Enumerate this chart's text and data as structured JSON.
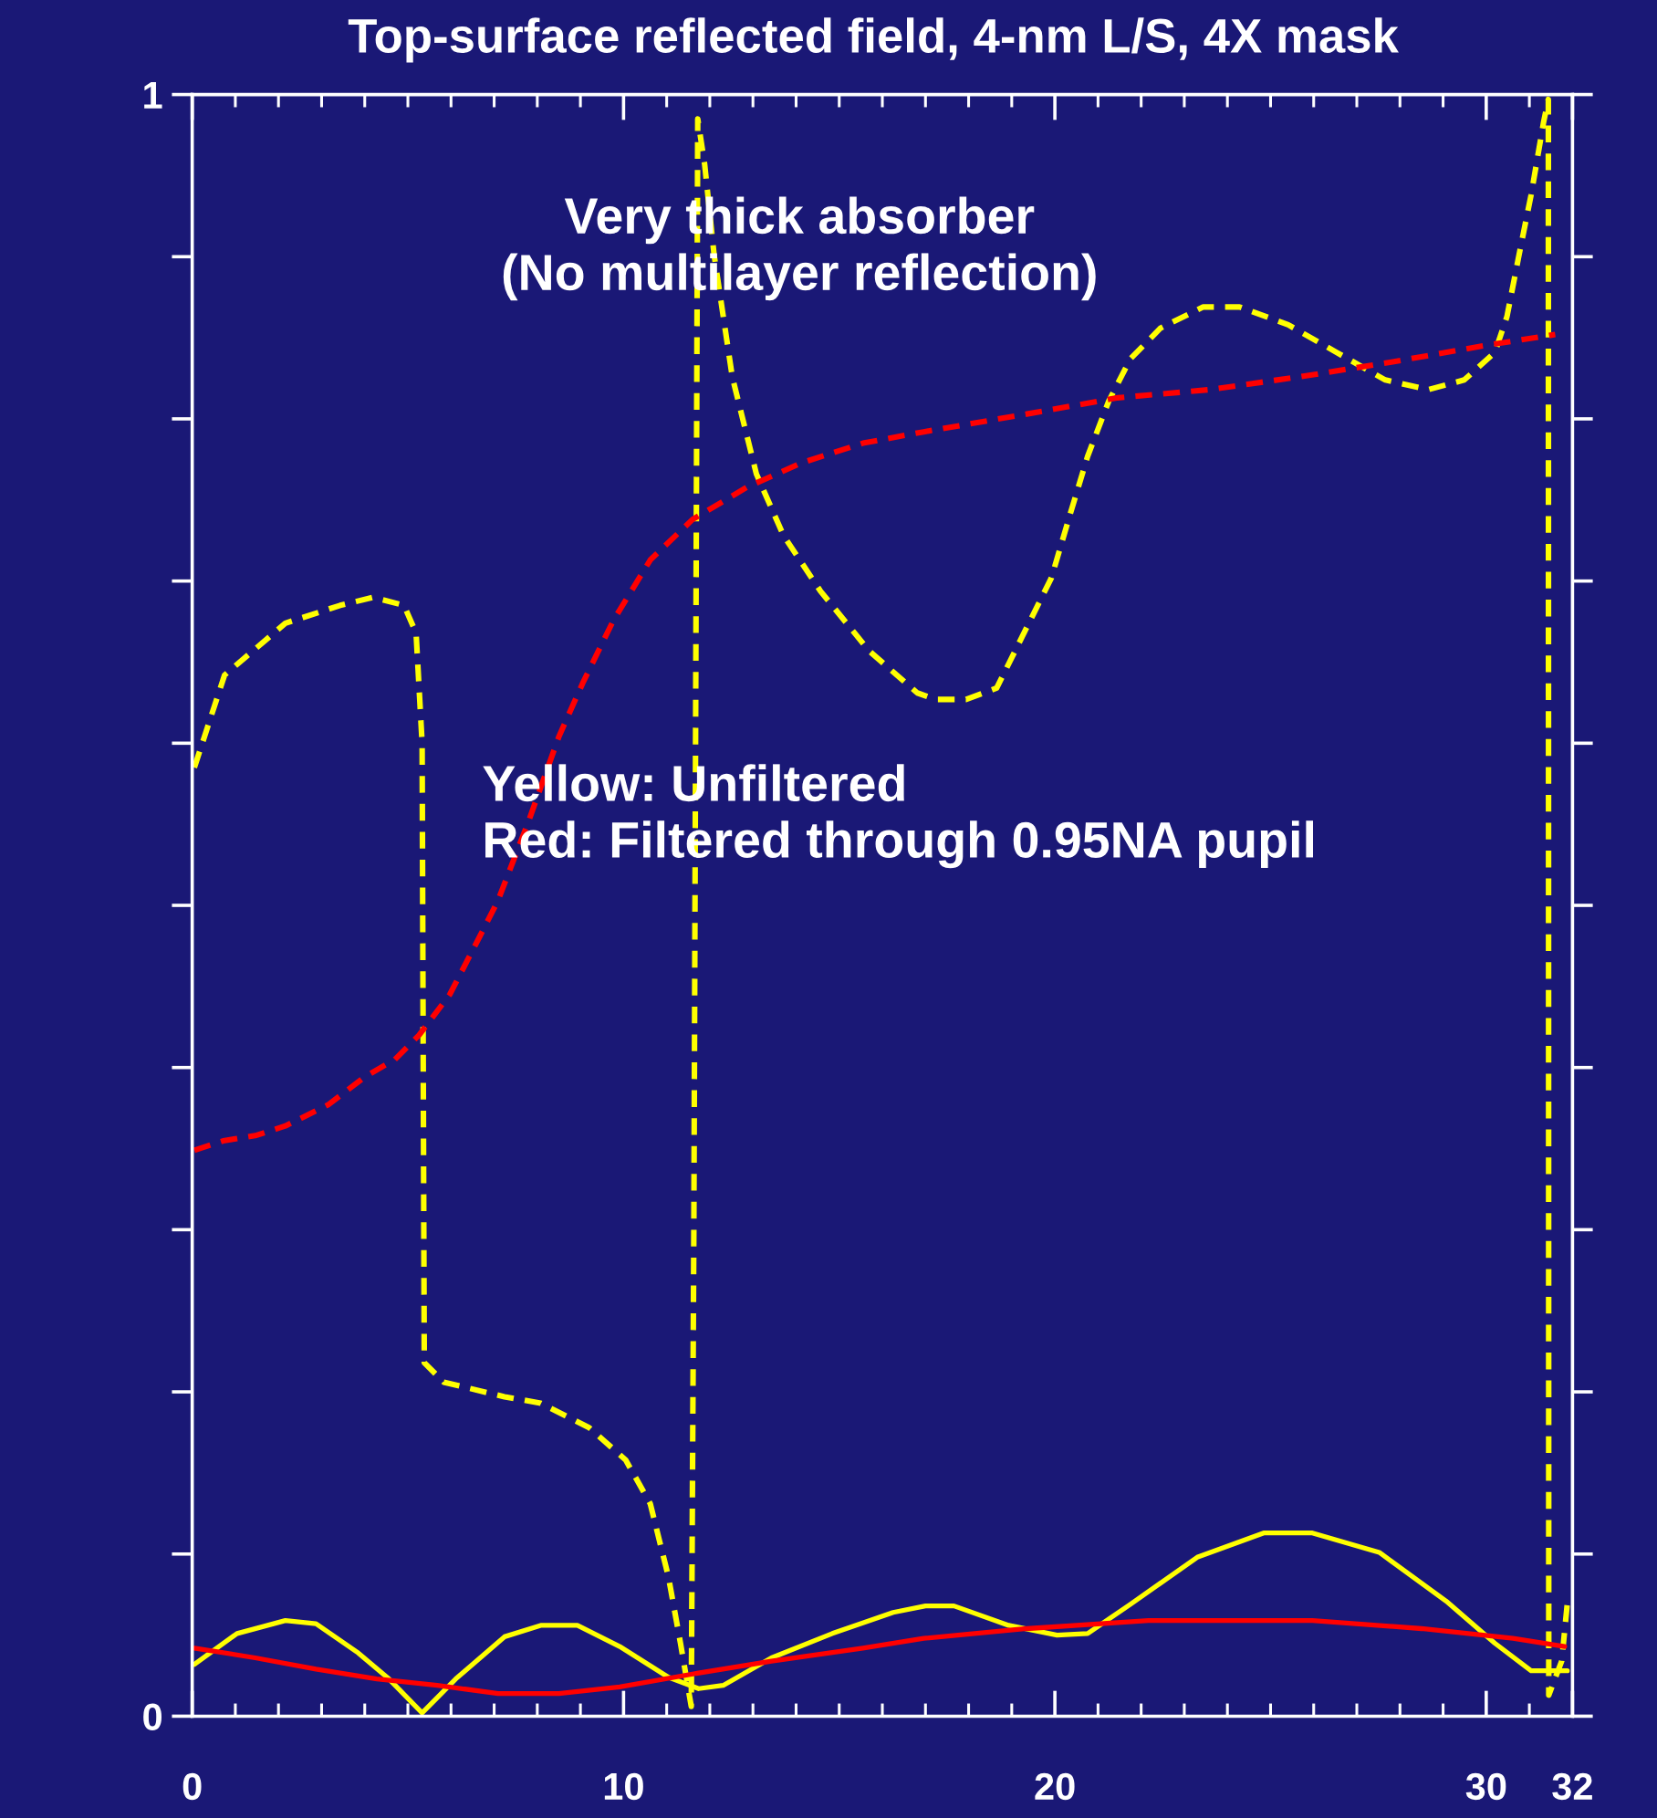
{
  "chart_data": {
    "type": "line",
    "title": "Top-surface reflected field, 4-nm L/S, 4X mask",
    "annotations": [
      "Very thick absorber\n(No multilayer reflection)",
      "Yellow: Unfiltered\nRed: Filtered through 0.95NA pupil"
    ],
    "xlim": [
      0,
      32
    ],
    "ylim": [
      0,
      1
    ],
    "xticks": [
      0,
      {
        "value": 1,
        "label": null
      },
      {
        "value": 2,
        "label": null
      },
      {
        "value": 3,
        "label": null
      },
      {
        "value": 4,
        "label": null
      },
      {
        "value": 5,
        "label": null
      },
      {
        "value": 6,
        "label": null
      },
      {
        "value": 7,
        "label": null
      },
      {
        "value": 8,
        "label": null
      },
      {
        "value": 9,
        "label": null
      },
      10,
      {
        "value": 11,
        "label": null
      },
      {
        "value": 12,
        "label": null
      },
      {
        "value": 13,
        "label": null
      },
      {
        "value": 14,
        "label": null
      },
      {
        "value": 15,
        "label": null
      },
      {
        "value": 16,
        "label": null
      },
      {
        "value": 17,
        "label": null
      },
      {
        "value": 18,
        "label": null
      },
      {
        "value": 19,
        "label": null
      },
      20,
      {
        "value": 21,
        "label": null
      },
      {
        "value": 22,
        "label": null
      },
      {
        "value": 23,
        "label": null
      },
      {
        "value": 24,
        "label": null
      },
      {
        "value": 25,
        "label": null
      },
      {
        "value": 26,
        "label": null
      },
      {
        "value": 27,
        "label": null
      },
      {
        "value": 28,
        "label": null
      },
      {
        "value": 29,
        "label": null
      },
      30,
      {
        "value": 31,
        "label": null
      },
      32
    ],
    "yticks": [
      0,
      {
        "value": 0.1,
        "label": null
      },
      {
        "value": 0.2,
        "label": null
      },
      {
        "value": 0.3,
        "label": null
      },
      {
        "value": 0.4,
        "label": null
      },
      {
        "value": 0.5,
        "label": null
      },
      {
        "value": 0.6,
        "label": null
      },
      {
        "value": 0.7,
        "label": null
      },
      {
        "value": 0.8,
        "label": null
      },
      {
        "value": 0.9,
        "label": null
      },
      1
    ],
    "series": [
      {
        "color": "#ffff00",
        "line_style": "dashed",
        "x": [
          0.05,
          0.75,
          2.16,
          3.43,
          4.2,
          4.91,
          5.19,
          5.33,
          5.38,
          5.83,
          7.24,
          8.08,
          9.2,
          10.05,
          10.62,
          11.04,
          11.32,
          11.57,
          11.63,
          11.72,
          11.88,
          12.1,
          12.52,
          13.08,
          13.71,
          14.56,
          15.69,
          16.81,
          17.24,
          17.94,
          18.65,
          19.21,
          19.92,
          20.34,
          20.76,
          21.25,
          21.75,
          22.45,
          23.44,
          24.28,
          25.41,
          26.53,
          27.66,
          28.65,
          29.49,
          30.2,
          30.48,
          30.76,
          31.04,
          31.33,
          31.44,
          31.45,
          31.75,
          31.9
        ],
        "values": [
          0.585,
          0.642,
          0.674,
          0.685,
          0.69,
          0.685,
          0.668,
          0.6,
          0.218,
          0.206,
          0.197,
          0.193,
          0.178,
          0.158,
          0.131,
          0.086,
          0.045,
          0.006,
          0.3,
          0.985,
          0.957,
          0.901,
          0.826,
          0.766,
          0.728,
          0.694,
          0.657,
          0.631,
          0.627,
          0.627,
          0.634,
          0.664,
          0.702,
          0.74,
          0.777,
          0.811,
          0.837,
          0.856,
          0.869,
          0.869,
          0.858,
          0.841,
          0.824,
          0.818,
          0.824,
          0.841,
          0.863,
          0.901,
          0.938,
          0.983,
          0.997,
          0.013,
          0.034,
          0.075
        ]
      },
      {
        "color": "#ff0000",
        "line_style": "dashed",
        "x": [
          0.05,
          0.75,
          1.46,
          2.16,
          3.15,
          3.99,
          4.7,
          5.26,
          5.97,
          6.67,
          7.09,
          7.8,
          8.5,
          9.07,
          9.77,
          10.62,
          11.6,
          12.87,
          14.14,
          15.55,
          16.96,
          19.35,
          21.46,
          23.58,
          25.69,
          27.8,
          29.92,
          31.6
        ],
        "values": [
          0.349,
          0.355,
          0.358,
          0.364,
          0.377,
          0.394,
          0.405,
          0.42,
          0.445,
          0.481,
          0.503,
          0.552,
          0.604,
          0.638,
          0.676,
          0.713,
          0.738,
          0.758,
          0.773,
          0.785,
          0.792,
          0.803,
          0.813,
          0.818,
          0.826,
          0.835,
          0.845,
          0.852
        ]
      },
      {
        "color": "#ffff00",
        "line_style": "solid",
        "x": [
          0.05,
          1.04,
          2.16,
          2.87,
          3.85,
          4.56,
          5.33,
          6.11,
          7.24,
          8.08,
          8.93,
          9.91,
          11.04,
          11.74,
          12.31,
          13.43,
          14.84,
          16.25,
          17.0,
          17.66,
          18.93,
          20.05,
          20.76,
          21.75,
          23.3,
          24.84,
          25.97,
          27.52,
          29.07,
          30.2,
          31.04,
          31.88
        ],
        "values": [
          0.032,
          0.051,
          0.059,
          0.057,
          0.039,
          0.023,
          0.002,
          0.023,
          0.049,
          0.056,
          0.056,
          0.043,
          0.024,
          0.017,
          0.019,
          0.036,
          0.051,
          0.064,
          0.068,
          0.068,
          0.056,
          0.05,
          0.051,
          0.069,
          0.098,
          0.113,
          0.113,
          0.101,
          0.071,
          0.045,
          0.028,
          0.028
        ]
      },
      {
        "color": "#ff0000",
        "line_style": "solid",
        "x": [
          0.05,
          1.46,
          2.87,
          4.28,
          5.68,
          7.09,
          8.5,
          9.91,
          11.6,
          13.43,
          15.55,
          16.96,
          19.35,
          22.17,
          25.97,
          28.5,
          30.62,
          31.82
        ],
        "values": [
          0.042,
          0.036,
          0.029,
          0.023,
          0.019,
          0.014,
          0.014,
          0.018,
          0.026,
          0.034,
          0.042,
          0.048,
          0.054,
          0.059,
          0.059,
          0.054,
          0.048,
          0.043
        ]
      }
    ]
  }
}
